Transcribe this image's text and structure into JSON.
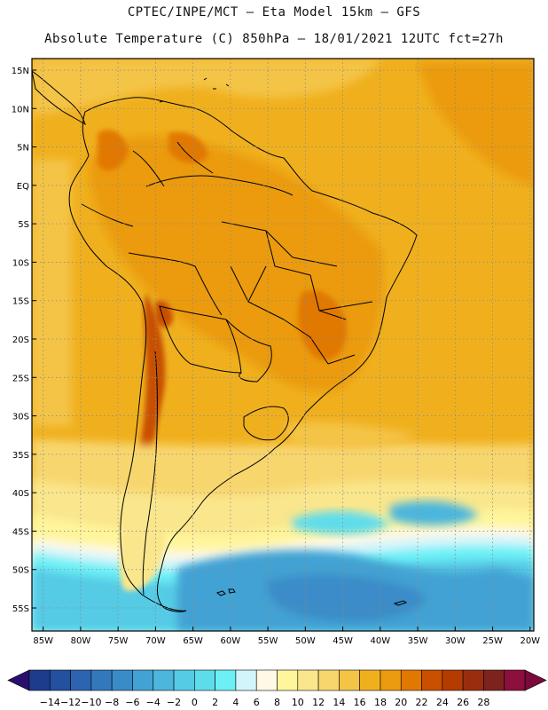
{
  "header": {
    "line1": "CPTEC/INPE/MCT —  Eta Model 15km — GFS",
    "line2": "Absolute Temperature (C) 850hPa — 18/01/2021 12UTC fct=27h"
  },
  "map": {
    "lat_labels": [
      "15N",
      "10N",
      "5N",
      "EQ",
      "5S",
      "10S",
      "15S",
      "20S",
      "25S",
      "30S",
      "35S",
      "40S",
      "45S",
      "50S",
      "55S"
    ],
    "lat_values": [
      15,
      10,
      5,
      0,
      -5,
      -10,
      -15,
      -20,
      -25,
      -30,
      -35,
      -40,
      -45,
      -50,
      -55
    ],
    "lon_labels": [
      "85W",
      "80W",
      "75W",
      "70W",
      "65W",
      "60W",
      "55W",
      "50W",
      "45W",
      "40W",
      "35W",
      "30W",
      "25W",
      "20W"
    ],
    "lon_values": [
      -85,
      -80,
      -75,
      -70,
      -65,
      -60,
      -55,
      -50,
      -45,
      -40,
      -35,
      -30,
      -25,
      -20
    ],
    "lat_range": [
      -58,
      16.5
    ],
    "lon_range": [
      -86.5,
      -19.5
    ]
  },
  "colorbar": {
    "tick_labels": [
      "-14",
      "-12",
      "-10",
      "-8",
      "-6",
      "-4",
      "-2",
      "0",
      "2",
      "4",
      "6",
      "8",
      "10",
      "12",
      "14",
      "16",
      "18",
      "20",
      "22",
      "24",
      "26",
      "28"
    ],
    "colors": [
      "#1e3c8c",
      "#23509f",
      "#2c64b2",
      "#3278bb",
      "#3a8cc8",
      "#43a2d3",
      "#4cb6dc",
      "#55cbe6",
      "#5fdcec",
      "#6cf0f5",
      "#d2f4fb",
      "#fff8e6",
      "#fff59b",
      "#fae68c",
      "#f8d66e",
      "#f4c446",
      "#f0b01e",
      "#eb9b0f",
      "#e17800",
      "#c85000",
      "#b43c00",
      "#9b2d0f",
      "#7d231e",
      "#8c0f3c"
    ],
    "end_left_color": "#2a0f6e",
    "end_right_color": "#7a0a3a"
  }
}
